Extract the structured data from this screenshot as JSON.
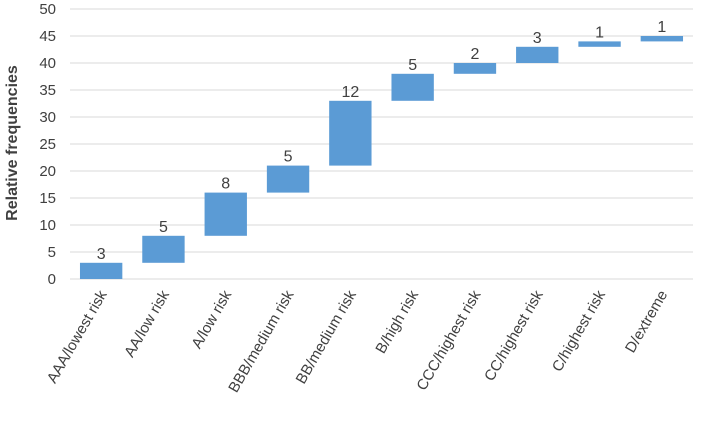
{
  "chart_data": {
    "type": "bar",
    "subtype": "waterfall",
    "title": "",
    "xlabel": "",
    "ylabel": "Relative frequencies",
    "ylim": [
      0,
      50
    ],
    "yticks": [
      0,
      5,
      10,
      15,
      20,
      25,
      30,
      35,
      40,
      45,
      50
    ],
    "grid": true,
    "bar_color": "#5b9bd5",
    "categories": [
      "AAA/lowest risk",
      "AA/low risk",
      "A/low risk",
      "BBB/medium risk",
      "BB/medium risk",
      "B/high risk",
      "CCC/highest risk",
      "CC/highest risk",
      "C/highest risk",
      "D/extreme"
    ],
    "values": [
      3,
      5,
      8,
      5,
      12,
      5,
      2,
      3,
      1,
      1
    ],
    "labels": [
      "3",
      "5",
      "8",
      "5",
      "12",
      "5",
      "2",
      "3",
      "1",
      "1"
    ]
  }
}
